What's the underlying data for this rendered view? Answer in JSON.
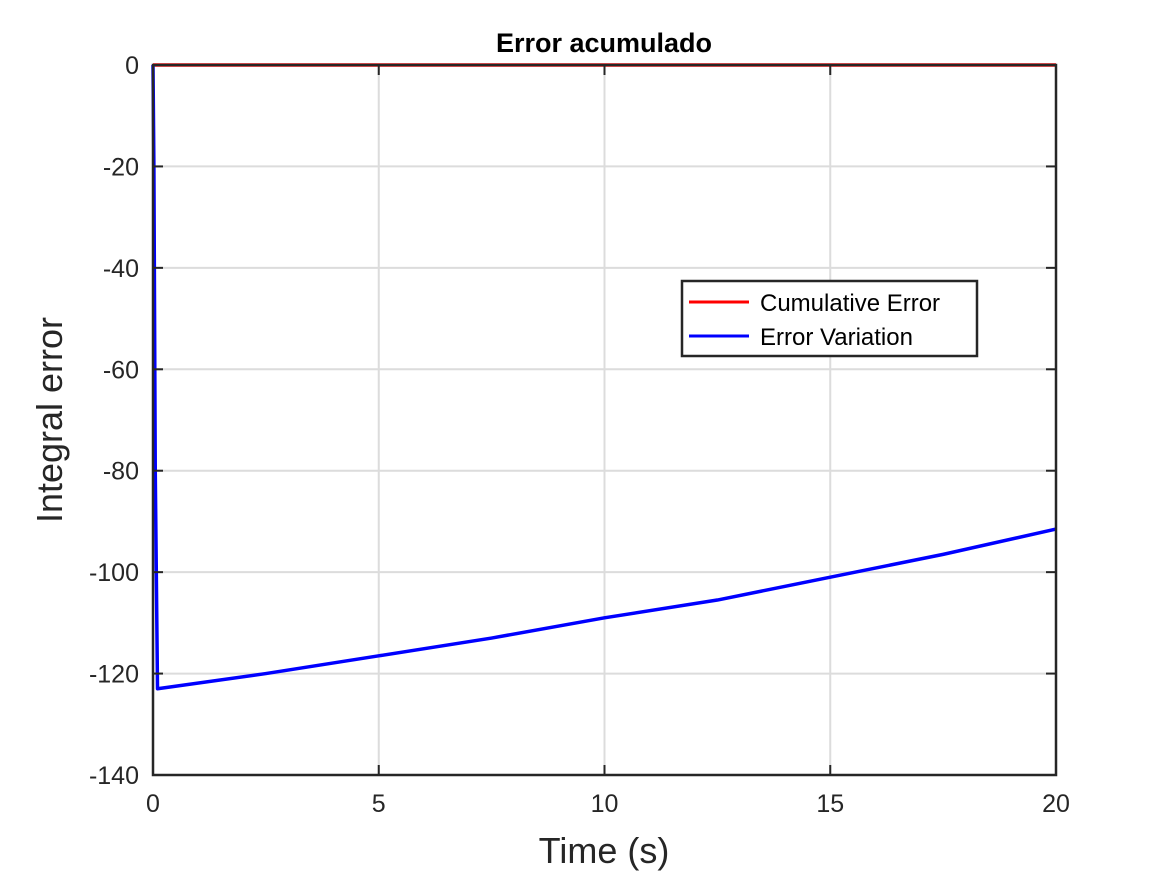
{
  "chart_data": {
    "type": "line",
    "title": "Error acumulado",
    "xlabel": "Time (s)",
    "ylabel": "Integral error",
    "xlim": [
      0,
      20
    ],
    "ylim": [
      -140,
      0
    ],
    "xticks": [
      0,
      5,
      10,
      15,
      20
    ],
    "yticks": [
      0,
      -20,
      -40,
      -60,
      -80,
      -100,
      -120,
      -140
    ],
    "grid": true,
    "legend_position": "center-right",
    "series": [
      {
        "name": "Cumulative Error",
        "color": "#ff0000",
        "x": [
          0,
          20
        ],
        "y": [
          0,
          0
        ]
      },
      {
        "name": "Error Variation",
        "color": "#0000ff",
        "x": [
          0,
          0.02,
          0.05,
          0.1,
          2.5,
          5,
          7.5,
          10,
          12.5,
          15,
          17.5,
          20
        ],
        "y": [
          0,
          -20,
          -80,
          -123,
          -120,
          -116.5,
          -113,
          -109,
          -105.5,
          -101,
          -96.5,
          -91.5
        ]
      }
    ]
  }
}
